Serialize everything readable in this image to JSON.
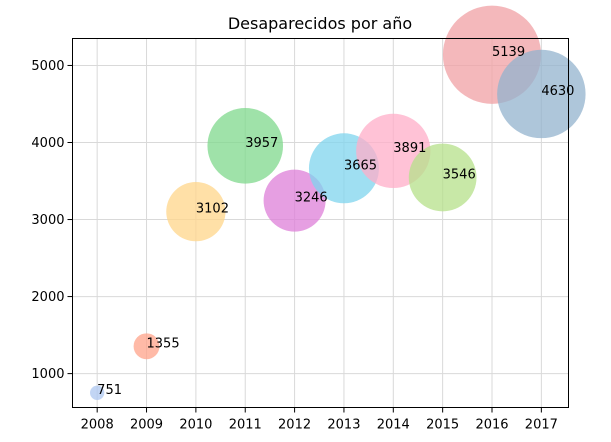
{
  "chart_data": {
    "type": "scatter",
    "title": "Desaparecidos por año",
    "xlabel": "",
    "ylabel": "",
    "xlim": [
      2007.5,
      2017.55
    ],
    "ylim": [
      560,
      5350
    ],
    "grid": true,
    "x_ticks": [
      "2008",
      "2009",
      "2010",
      "2011",
      "2012",
      "2013",
      "2014",
      "2015",
      "2016",
      "2017"
    ],
    "y_ticks": [
      "1000",
      "2000",
      "3000",
      "4000",
      "5000"
    ],
    "points": [
      {
        "x": 2008,
        "y": 751,
        "label": "751",
        "color": "#aec7f0"
      },
      {
        "x": 2009,
        "y": 1355,
        "label": "1355",
        "color": "#ffa38a"
      },
      {
        "x": 2010,
        "y": 3102,
        "label": "3102",
        "color": "#ffd58a"
      },
      {
        "x": 2011,
        "y": 3957,
        "label": "3957",
        "color": "#7fd88c"
      },
      {
        "x": 2012,
        "y": 3246,
        "label": "3246",
        "color": "#dd7fd8"
      },
      {
        "x": 2013,
        "y": 3665,
        "label": "3665",
        "color": "#7fd4ee"
      },
      {
        "x": 2014,
        "y": 3891,
        "label": "3891",
        "color": "#ffadc8"
      },
      {
        "x": 2015,
        "y": 3546,
        "label": "3546",
        "color": "#b5e08a"
      },
      {
        "x": 2016,
        "y": 5139,
        "label": "5139",
        "color": "#f0a0a4"
      },
      {
        "x": 2017,
        "y": 4630,
        "label": "4630",
        "color": "#93b3cd"
      }
    ]
  }
}
